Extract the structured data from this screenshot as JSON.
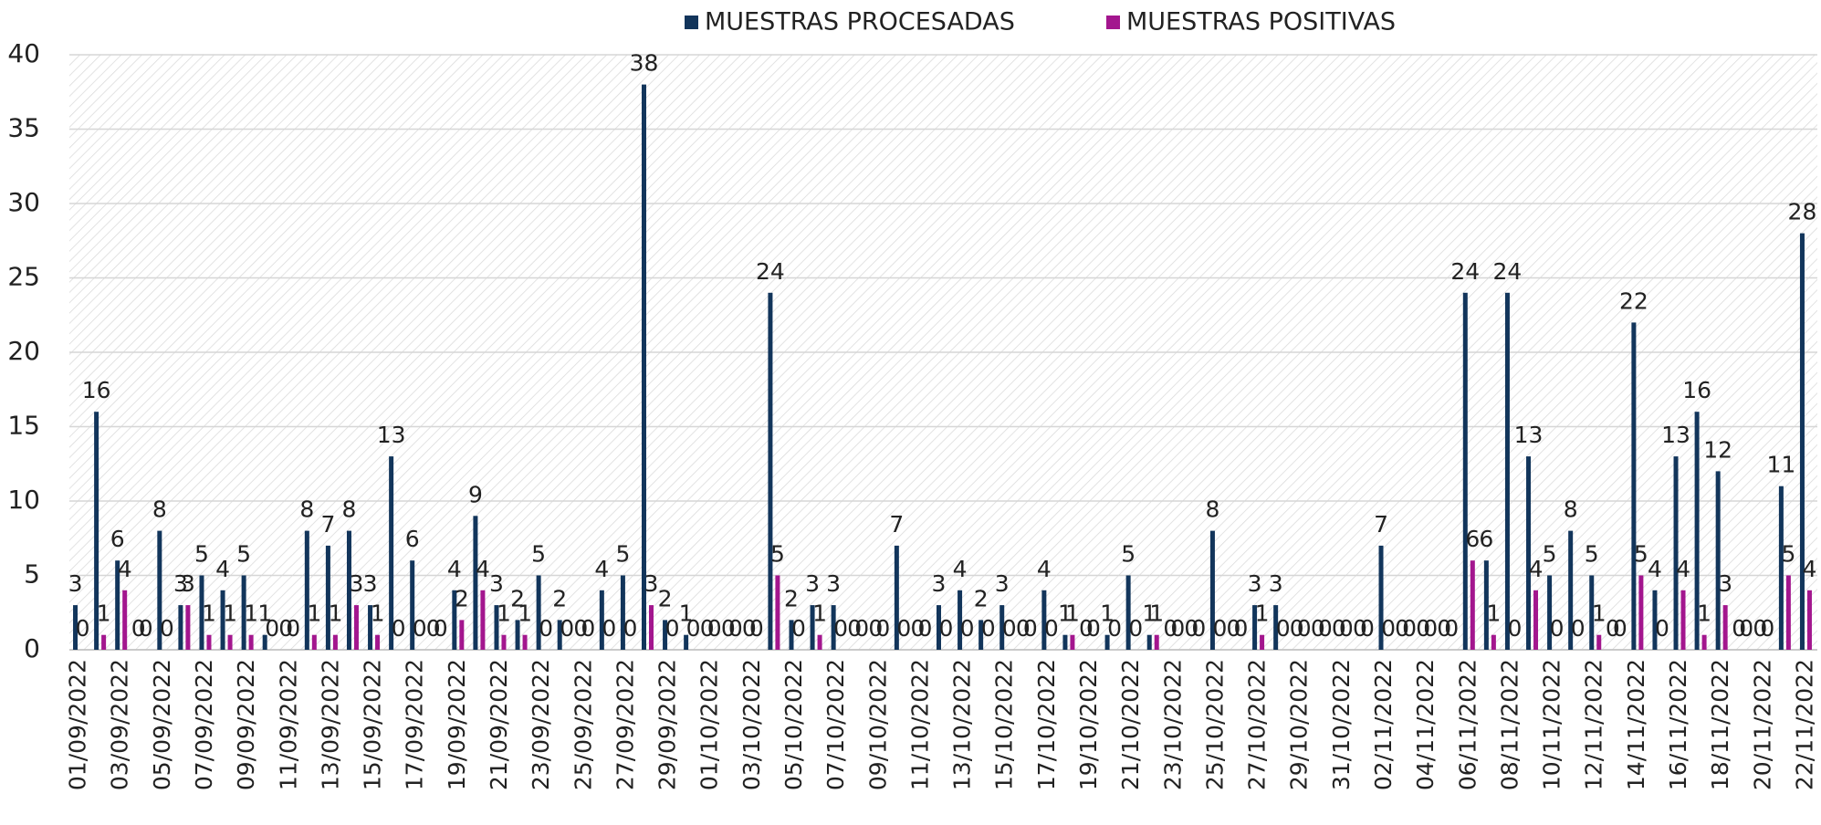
{
  "chart_data": {
    "type": "bar",
    "categories": [
      "01/09/2022",
      null,
      "03/09/2022",
      null,
      "05/09/2022",
      null,
      "07/09/2022",
      null,
      "09/09/2022",
      null,
      "11/09/2022",
      null,
      "13/09/2022",
      null,
      "15/09/2022",
      null,
      "17/09/2022",
      null,
      "19/09/2022",
      null,
      "21/09/2022",
      null,
      "23/09/2022",
      null,
      "25/09/2022",
      null,
      "27/09/2022",
      null,
      "29/09/2022",
      null,
      "01/10/2022",
      null,
      "03/10/2022",
      null,
      "05/10/2022",
      null,
      "07/10/2022",
      null,
      "09/10/2022",
      null,
      "11/10/2022",
      null,
      "13/10/2022",
      null,
      "15/10/2022",
      null,
      "17/10/2022",
      null,
      "19/10/2022",
      null,
      "21/10/2022",
      null,
      "23/10/2022",
      null,
      "25/10/2022",
      null,
      "27/10/2022",
      null,
      "29/10/2022",
      null,
      "31/10/2022",
      null,
      "02/11/2022",
      null,
      "04/11/2022",
      null,
      "06/11/2022",
      null,
      "08/11/2022",
      null,
      "10/11/2022",
      null,
      "12/11/2022",
      null,
      "14/11/2022",
      null,
      "16/11/2022",
      null,
      "18/11/2022",
      null,
      "20/11/2022",
      null,
      "22/11/2022"
    ],
    "series": [
      {
        "name": "MUESTRAS PROCESADAS",
        "color": "#12355b",
        "values": [
          3,
          16,
          6,
          0,
          8,
          3,
          5,
          4,
          5,
          1,
          0,
          8,
          7,
          8,
          3,
          13,
          6,
          0,
          4,
          9,
          3,
          2,
          5,
          2,
          0,
          4,
          5,
          38,
          2,
          1,
          0,
          0,
          0,
          24,
          2,
          3,
          3,
          0,
          0,
          7,
          0,
          3,
          4,
          2,
          3,
          0,
          4,
          1,
          0,
          1,
          5,
          1,
          0,
          0,
          8,
          0,
          3,
          3,
          0,
          0,
          0,
          0,
          7,
          0,
          0,
          0,
          24,
          6,
          24,
          13,
          5,
          8,
          5,
          0,
          22,
          4,
          13,
          16,
          12,
          0,
          0,
          11,
          28
        ]
      },
      {
        "name": "MUESTRAS POSITIVAS",
        "color": "#a3168e",
        "values": [
          0,
          1,
          4,
          0,
          0,
          3,
          1,
          1,
          1,
          0,
          0,
          1,
          1,
          3,
          1,
          0,
          0,
          0,
          2,
          4,
          1,
          1,
          0,
          0,
          0,
          0,
          0,
          3,
          0,
          0,
          0,
          0,
          0,
          5,
          0,
          1,
          0,
          0,
          0,
          0,
          0,
          0,
          0,
          0,
          0,
          0,
          0,
          1,
          0,
          0,
          0,
          1,
          0,
          0,
          0,
          0,
          1,
          0,
          0,
          0,
          0,
          0,
          0,
          0,
          0,
          0,
          6,
          1,
          0,
          4,
          0,
          0,
          1,
          0,
          5,
          0,
          4,
          1,
          3,
          0,
          0,
          5,
          4
        ]
      }
    ],
    "ylim": [
      0,
      40
    ],
    "yticks": [
      0,
      5,
      10,
      15,
      20,
      25,
      30,
      35,
      40
    ],
    "grid": true,
    "legend": "top"
  }
}
